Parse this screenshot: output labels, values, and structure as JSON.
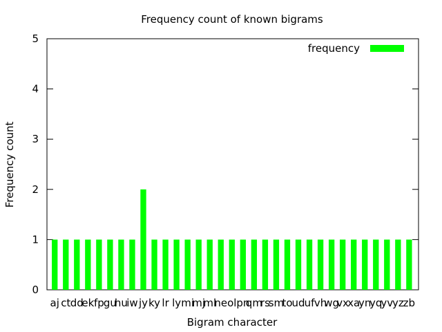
{
  "chart_data": {
    "type": "bar",
    "title": "Frequency count of known bigrams",
    "xlabel": "Bigram character",
    "ylabel": "Frequency count",
    "ylim": [
      0,
      5
    ],
    "yticks": [
      0,
      1,
      2,
      3,
      4,
      5
    ],
    "grid": false,
    "legend": "top-right",
    "categories": [
      "aj",
      "ct",
      "dd",
      "ek",
      "fp",
      "gu",
      "hu",
      "iw",
      "jy",
      "ky",
      "lr",
      "ly",
      "mi",
      "mj",
      "ml",
      "ne",
      "ol",
      "pn",
      "qm",
      "rs",
      "sm",
      "to",
      "ud",
      "uf",
      "vh",
      "wg",
      "vx",
      "xa",
      "yn",
      "yq",
      "yv",
      "yz",
      "zb"
    ],
    "series": [
      {
        "name": "frequency",
        "color": "#00ff00",
        "values": [
          1,
          1,
          1,
          1,
          1,
          1,
          1,
          1,
          2,
          1,
          1,
          1,
          1,
          1,
          1,
          1,
          1,
          1,
          1,
          1,
          1,
          1,
          1,
          1,
          1,
          1,
          1,
          1,
          1,
          1,
          1,
          1,
          1
        ]
      }
    ]
  }
}
